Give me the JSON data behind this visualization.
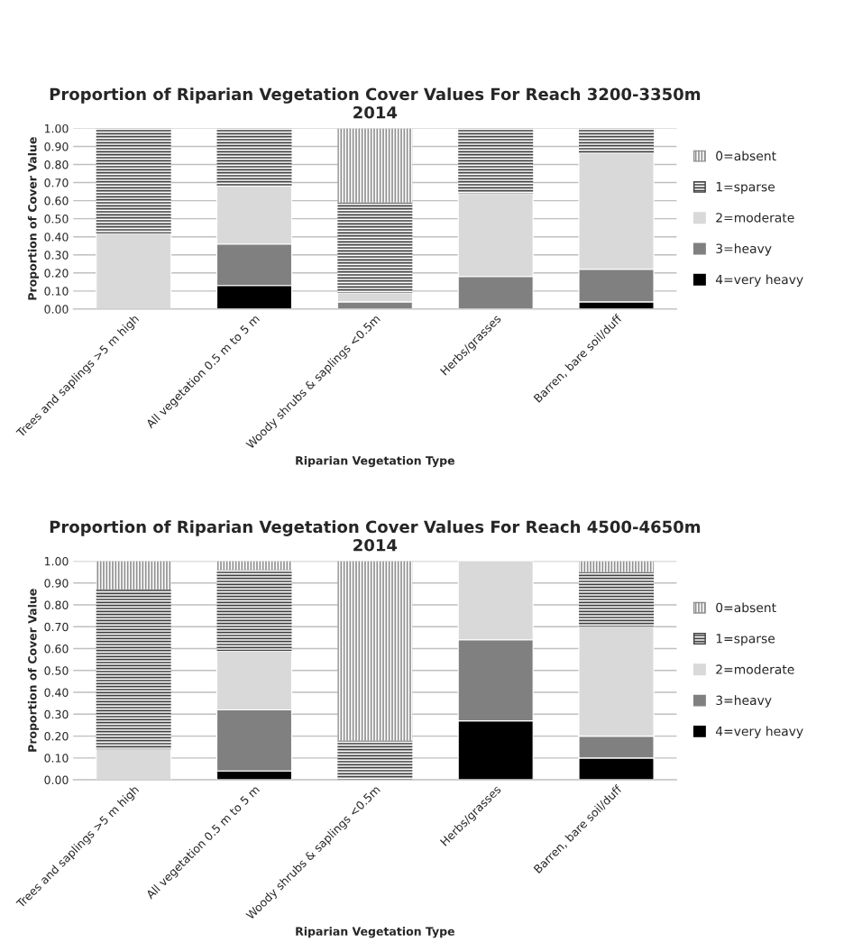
{
  "chart_data": [
    {
      "type": "bar",
      "stacked": true,
      "title": "Proportion of Riparian Vegetation Cover Values For Reach 3200-3350m\n2014",
      "xlabel": "Riparian Vegetation Type",
      "ylabel": "Proportion of Cover Value",
      "categories": [
        "Trees and saplings >5 m high",
        "All vegetation 0.5 m to 5 m",
        "Woody shrubs & saplings <0.5m",
        "Herbs/grasses",
        "Barren, bare soil/duff"
      ],
      "series": [
        {
          "name": "4=very heavy",
          "color": "#000000",
          "values": [
            0,
            0.13,
            0,
            0,
            0.04
          ]
        },
        {
          "name": "3=heavy",
          "color": "#808080",
          "values": [
            0,
            0.23,
            0.04,
            0.18,
            0.18
          ]
        },
        {
          "name": "2=moderate",
          "color": "#d9d9d9",
          "values": [
            0.42,
            0.32,
            0.05,
            0.46,
            0.64
          ]
        },
        {
          "name": "1=sparse",
          "color": "#404040",
          "values": [
            0.58,
            0.32,
            0.5,
            0.36,
            0.14
          ]
        },
        {
          "name": "0=absent",
          "color": "#909090",
          "values": [
            0,
            0,
            0.41,
            0,
            0
          ]
        }
      ],
      "ylim": [
        0,
        1
      ],
      "yticks": [
        {
          "value": 0,
          "label": "0.00"
        },
        {
          "value": 0.1,
          "label": "0.10"
        },
        {
          "value": 0.2,
          "label": "0.20"
        },
        {
          "value": 0.3,
          "label": "0.30"
        },
        {
          "value": 0.4,
          "label": "0.40"
        },
        {
          "value": 0.5,
          "label": "0.50"
        },
        {
          "value": 0.6,
          "label": "0.60"
        },
        {
          "value": 0.7,
          "label": "0.70"
        },
        {
          "value": 0.8,
          "label": "0.80"
        },
        {
          "value": 0.9,
          "label": "0.90"
        },
        {
          "value": 1,
          "label": "1.00"
        }
      ],
      "grid": "y",
      "legend": "right"
    },
    {
      "type": "bar",
      "stacked": true,
      "title": "Proportion of Riparian Vegetation Cover Values For Reach 4500-4650m\n2014",
      "xlabel": "Riparian Vegetation Type",
      "ylabel": "Proportion of Cover Value",
      "categories": [
        "Trees and saplings >5 m high",
        "All vegetation 0.5 m to 5 m",
        "Woody shrubs & saplings <0.5m",
        "Herbs/grasses",
        "Barren, bare soil/duff"
      ],
      "series": [
        {
          "name": "4=very heavy",
          "color": "#000000",
          "values": [
            0,
            0.04,
            0,
            0.27,
            0.1
          ]
        },
        {
          "name": "3=heavy",
          "color": "#808080",
          "values": [
            0,
            0.28,
            0,
            0.37,
            0.1
          ]
        },
        {
          "name": "2=moderate",
          "color": "#d9d9d9",
          "values": [
            0.14,
            0.27,
            0,
            0.36,
            0.5
          ]
        },
        {
          "name": "1=sparse",
          "color": "#404040",
          "values": [
            0.73,
            0.37,
            0.18,
            0,
            0.25
          ]
        },
        {
          "name": "0=absent",
          "color": "#909090",
          "values": [
            0.13,
            0.04,
            0.82,
            0,
            0.05
          ]
        }
      ],
      "ylim": [
        0,
        1
      ],
      "yticks": [
        {
          "value": 0,
          "label": "0.00"
        },
        {
          "value": 0.1,
          "label": "0.10"
        },
        {
          "value": 0.2,
          "label": "0.20"
        },
        {
          "value": 0.3,
          "label": "0.30"
        },
        {
          "value": 0.4,
          "label": "0.40"
        },
        {
          "value": 0.5,
          "label": "0.50"
        },
        {
          "value": 0.6,
          "label": "0.60"
        },
        {
          "value": 0.7,
          "label": "0.70"
        },
        {
          "value": 0.8,
          "label": "0.80"
        },
        {
          "value": 0.9,
          "label": "0.90"
        },
        {
          "value": 1,
          "label": "1.00"
        }
      ],
      "grid": "y",
      "legend": "right"
    }
  ]
}
